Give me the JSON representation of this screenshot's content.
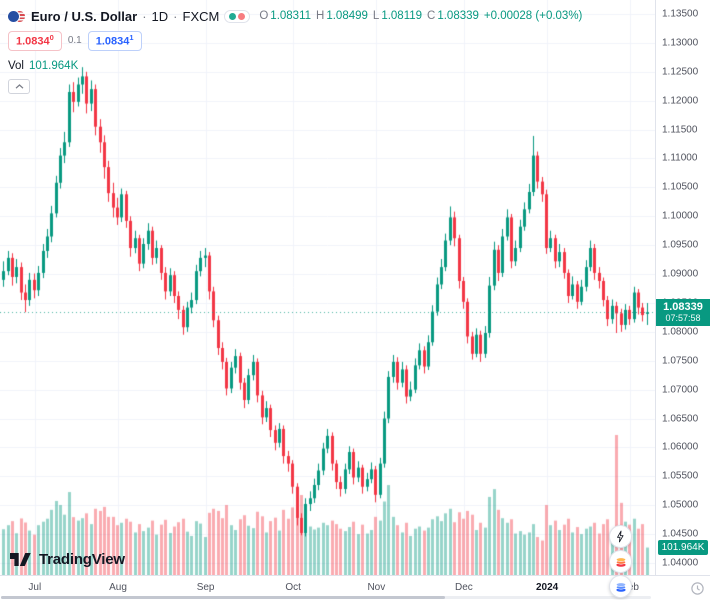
{
  "header": {
    "symbol": "Euro / U.S. Dollar",
    "separator": "·",
    "interval": "1D",
    "exchange": "FXCM",
    "ohlc": {
      "o_label": "O",
      "o_value": "1.08311",
      "h_label": "H",
      "h_value": "1.08499",
      "l_label": "L",
      "l_value": "1.08119",
      "c_label": "C",
      "c_value": "1.08339",
      "change": "+0.00028 (+0.03%)"
    },
    "sell_price": "1.0834",
    "sell_sup": "0",
    "spread": "0.1",
    "buy_price": "1.0834",
    "buy_sup": "1",
    "vol_label": "Vol",
    "vol_value": "101.964K"
  },
  "price_scale": {
    "current_price": "1.08339",
    "countdown": "07:57:58",
    "volume_badge": "101.964K"
  },
  "footer": {
    "brand": "TradingView"
  },
  "colors": {
    "up": "#089981",
    "down": "#f23645",
    "up_volume": "rgba(8,153,129,0.42)",
    "down_volume": "rgba(242,54,69,0.42)",
    "price_line": "rgba(8,153,129,0.75)",
    "price_tag_bg": "#089981",
    "volume_badge_bg": "#089981",
    "buy": "#2962ff",
    "sell": "#f23645",
    "grid": "#f0f3fa",
    "axis_text": "#50535e"
  },
  "chart_data": {
    "type": "candlestick",
    "title": "Euro / U.S. Dollar · 1D · FXCM",
    "symbol": "EURUSD",
    "interval": "1D",
    "exchange": "FXCM",
    "grid": true,
    "y_axis": {
      "min": 1.04,
      "max": 1.135,
      "tick_step": 0.005,
      "ticks": [
        "1.13500",
        "1.13000",
        "1.12500",
        "1.12000",
        "1.11500",
        "1.11000",
        "1.10500",
        "1.10000",
        "1.09500",
        "1.09000",
        "1.08500",
        "1.08000",
        "1.07500",
        "1.07000",
        "1.06500",
        "1.06000",
        "1.05500",
        "1.05000",
        "1.04500",
        "1.04000"
      ]
    },
    "x_axis": {
      "ticks": [
        {
          "label": "Jul",
          "index": 7
        },
        {
          "label": "Aug",
          "index": 26
        },
        {
          "label": "Sep",
          "index": 46
        },
        {
          "label": "Oct",
          "index": 66
        },
        {
          "label": "Nov",
          "index": 85
        },
        {
          "label": "Dec",
          "index": 105
        },
        {
          "label": "2024",
          "index": 124,
          "year": true
        },
        {
          "label": "Feb",
          "index": 143
        }
      ]
    },
    "last_bar": {
      "open": 1.08311,
      "high": 1.08499,
      "low": 1.08119,
      "close": 1.08339,
      "change_abs": "+0.00028",
      "change_pct": "+0.03%",
      "volume": "101.964K"
    },
    "columns": [
      "open",
      "high",
      "low",
      "close",
      "volume_k"
    ],
    "candles": [
      [
        1.089,
        1.0922,
        1.0878,
        1.0905,
        170
      ],
      [
        1.0905,
        1.094,
        1.0898,
        1.0928,
        185
      ],
      [
        1.0928,
        1.0936,
        1.088,
        1.0895,
        200
      ],
      [
        1.0895,
        1.0926,
        1.0884,
        1.0912,
        155
      ],
      [
        1.0912,
        1.092,
        1.0855,
        1.0868,
        210
      ],
      [
        1.0868,
        1.0882,
        1.0834,
        1.0855,
        195
      ],
      [
        1.0855,
        1.0902,
        1.0845,
        1.089,
        165
      ],
      [
        1.089,
        1.0901,
        1.0858,
        1.0872,
        150
      ],
      [
        1.0872,
        1.0914,
        1.0862,
        1.0902,
        185
      ],
      [
        1.0902,
        1.0952,
        1.0893,
        1.094,
        198
      ],
      [
        1.094,
        1.0978,
        1.0928,
        1.0965,
        209
      ],
      [
        1.0965,
        1.1018,
        1.0955,
        1.1005,
        242
      ],
      [
        1.1005,
        1.107,
        1.0998,
        1.1058,
        275
      ],
      [
        1.1058,
        1.1118,
        1.1048,
        1.1105,
        260
      ],
      [
        1.1105,
        1.1146,
        1.1092,
        1.1128,
        224
      ],
      [
        1.1128,
        1.1228,
        1.112,
        1.1215,
        308
      ],
      [
        1.1215,
        1.1232,
        1.118,
        1.1198,
        215
      ],
      [
        1.1198,
        1.124,
        1.119,
        1.1228,
        202
      ],
      [
        1.1228,
        1.1258,
        1.1212,
        1.1242,
        211
      ],
      [
        1.1242,
        1.125,
        1.1178,
        1.1195,
        229
      ],
      [
        1.1195,
        1.1235,
        1.1182,
        1.122,
        189
      ],
      [
        1.122,
        1.1228,
        1.114,
        1.1155,
        246
      ],
      [
        1.1155,
        1.1168,
        1.111,
        1.1128,
        238
      ],
      [
        1.1128,
        1.114,
        1.1065,
        1.1085,
        253
      ],
      [
        1.1085,
        1.1096,
        1.1025,
        1.104,
        216
      ],
      [
        1.104,
        1.1058,
        1.0998,
        1.1015,
        216
      ],
      [
        1.1015,
        1.1032,
        1.0985,
        1.0998,
        185
      ],
      [
        1.0998,
        1.1048,
        1.099,
        1.1038,
        194
      ],
      [
        1.1038,
        1.1044,
        1.098,
        1.0992,
        209
      ],
      [
        1.0992,
        1.1,
        1.093,
        1.0945,
        198
      ],
      [
        1.0945,
        1.0975,
        1.0936,
        1.0962,
        158
      ],
      [
        1.0962,
        1.0968,
        1.0905,
        1.0918,
        189
      ],
      [
        1.0918,
        1.0962,
        1.091,
        1.0952,
        163
      ],
      [
        1.0952,
        1.0988,
        1.0942,
        1.0975,
        176
      ],
      [
        1.0975,
        1.0982,
        1.0916,
        1.0928,
        202
      ],
      [
        1.0928,
        1.0958,
        1.0918,
        1.0945,
        150
      ],
      [
        1.0945,
        1.095,
        1.089,
        1.0902,
        187
      ],
      [
        1.0902,
        1.0912,
        1.0856,
        1.087,
        205
      ],
      [
        1.087,
        1.091,
        1.0862,
        1.0898,
        156
      ],
      [
        1.0898,
        1.0905,
        1.085,
        1.0862,
        180
      ],
      [
        1.0862,
        1.087,
        1.0822,
        1.0838,
        196
      ],
      [
        1.0838,
        1.0845,
        1.0795,
        1.0808,
        209
      ],
      [
        1.0808,
        1.0852,
        1.08,
        1.0842,
        161
      ],
      [
        1.0842,
        1.0868,
        1.0832,
        1.0855,
        145
      ],
      [
        1.0855,
        1.0916,
        1.0848,
        1.0905,
        200
      ],
      [
        1.0905,
        1.094,
        1.0896,
        1.0928,
        191
      ],
      [
        1.0928,
        1.0945,
        1.0912,
        1.0932,
        141
      ],
      [
        1.0932,
        1.0938,
        1.0856,
        1.087,
        231
      ],
      [
        1.087,
        1.0878,
        1.0808,
        1.082,
        246
      ],
      [
        1.082,
        1.0828,
        1.076,
        1.0772,
        238
      ],
      [
        1.0772,
        1.0782,
        1.0735,
        1.0748,
        211
      ],
      [
        1.0748,
        1.0755,
        1.069,
        1.0702,
        260
      ],
      [
        1.0702,
        1.0748,
        1.0694,
        1.0738,
        185
      ],
      [
        1.0738,
        1.077,
        1.0728,
        1.0758,
        167
      ],
      [
        1.0758,
        1.0764,
        1.07,
        1.0712,
        207
      ],
      [
        1.0712,
        1.072,
        1.0668,
        1.0682,
        222
      ],
      [
        1.0682,
        1.0736,
        1.0675,
        1.0725,
        183
      ],
      [
        1.0725,
        1.076,
        1.0716,
        1.0748,
        174
      ],
      [
        1.0748,
        1.0754,
        1.0678,
        1.069,
        235
      ],
      [
        1.069,
        1.0698,
        1.064,
        1.0652,
        218
      ],
      [
        1.0652,
        1.068,
        1.0644,
        1.0668,
        158
      ],
      [
        1.0668,
        1.0674,
        1.0618,
        1.063,
        200
      ],
      [
        1.063,
        1.0638,
        1.0595,
        1.0608,
        213
      ],
      [
        1.0608,
        1.0642,
        1.06,
        1.0632,
        165
      ],
      [
        1.0632,
        1.0638,
        1.0572,
        1.0585,
        242
      ],
      [
        1.0585,
        1.0594,
        1.0558,
        1.0572,
        209
      ],
      [
        1.0572,
        1.0578,
        1.052,
        1.0532,
        251
      ],
      [
        1.0532,
        1.0538,
        1.0465,
        1.0478,
        282
      ],
      [
        1.0478,
        1.0486,
        1.0448,
        1.0452,
        297
      ],
      [
        1.0452,
        1.0512,
        1.0446,
        1.0502,
        264
      ],
      [
        1.0502,
        1.0524,
        1.049,
        1.0512,
        180
      ],
      [
        1.0512,
        1.0546,
        1.0504,
        1.0535,
        169
      ],
      [
        1.0535,
        1.0572,
        1.0526,
        1.056,
        176
      ],
      [
        1.056,
        1.0608,
        1.0552,
        1.0598,
        194
      ],
      [
        1.0598,
        1.0632,
        1.059,
        1.062,
        185
      ],
      [
        1.062,
        1.0626,
        1.056,
        1.0572,
        202
      ],
      [
        1.0572,
        1.0578,
        1.0528,
        1.054,
        189
      ],
      [
        1.054,
        1.055,
        1.0515,
        1.0528,
        172
      ],
      [
        1.0528,
        1.0572,
        1.052,
        1.0562,
        163
      ],
      [
        1.0562,
        1.0602,
        1.0554,
        1.0592,
        178
      ],
      [
        1.0592,
        1.0598,
        1.0536,
        1.0548,
        198
      ],
      [
        1.0548,
        1.0576,
        1.054,
        1.0565,
        152
      ],
      [
        1.0565,
        1.057,
        1.052,
        1.0532,
        187
      ],
      [
        1.0532,
        1.0556,
        1.0524,
        1.0545,
        154
      ],
      [
        1.0545,
        1.0574,
        1.0538,
        1.0562,
        167
      ],
      [
        1.0562,
        1.0568,
        1.0505,
        1.0518,
        216
      ],
      [
        1.0518,
        1.0582,
        1.0512,
        1.0572,
        202
      ],
      [
        1.0572,
        1.0662,
        1.0565,
        1.065,
        273
      ],
      [
        1.065,
        1.0732,
        1.0642,
        1.0722,
        334
      ],
      [
        1.0722,
        1.076,
        1.0712,
        1.0748,
        216
      ],
      [
        1.0748,
        1.0756,
        1.07,
        1.0712,
        185
      ],
      [
        1.0712,
        1.0748,
        1.0704,
        1.0735,
        158
      ],
      [
        1.0735,
        1.0742,
        1.0676,
        1.0688,
        194
      ],
      [
        1.0688,
        1.0714,
        1.068,
        1.07,
        145
      ],
      [
        1.07,
        1.0754,
        1.0694,
        1.0742,
        172
      ],
      [
        1.0742,
        1.078,
        1.0735,
        1.0768,
        180
      ],
      [
        1.0768,
        1.0775,
        1.0728,
        1.074,
        165
      ],
      [
        1.074,
        1.0794,
        1.0734,
        1.0782,
        176
      ],
      [
        1.0782,
        1.0846,
        1.0776,
        1.0835,
        207
      ],
      [
        1.0835,
        1.0894,
        1.0828,
        1.0882,
        218
      ],
      [
        1.0882,
        1.0926,
        1.0874,
        1.0912,
        200
      ],
      [
        1.0912,
        1.097,
        1.0905,
        1.0958,
        229
      ],
      [
        1.0958,
        1.1017,
        1.095,
        1.0998,
        246
      ],
      [
        1.0998,
        1.1008,
        1.0948,
        1.0962,
        196
      ],
      [
        1.0962,
        1.0968,
        1.0875,
        1.0888,
        233
      ],
      [
        1.0888,
        1.0895,
        1.084,
        1.0852,
        209
      ],
      [
        1.0852,
        1.0858,
        1.078,
        1.0792,
        238
      ],
      [
        1.0792,
        1.08,
        1.0752,
        1.0762,
        224
      ],
      [
        1.0762,
        1.0806,
        1.0756,
        1.0795,
        167
      ],
      [
        1.0795,
        1.0802,
        1.0748,
        1.0762,
        194
      ],
      [
        1.0762,
        1.081,
        1.0755,
        1.0798,
        176
      ],
      [
        1.0798,
        1.0895,
        1.079,
        1.088,
        290
      ],
      [
        1.088,
        1.0956,
        1.0872,
        1.0942,
        319
      ],
      [
        1.0942,
        1.095,
        1.0888,
        1.0902,
        242
      ],
      [
        1.0902,
        1.0978,
        1.0895,
        1.0965,
        211
      ],
      [
        1.0965,
        1.1012,
        1.0958,
        1.0998,
        194
      ],
      [
        1.0998,
        1.1004,
        1.091,
        1.0922,
        207
      ],
      [
        1.0922,
        1.0958,
        1.0914,
        1.0945,
        154
      ],
      [
        1.0945,
        1.0994,
        1.0938,
        1.0982,
        163
      ],
      [
        1.0982,
        1.1024,
        1.0975,
        1.1012,
        150
      ],
      [
        1.1012,
        1.1056,
        1.1005,
        1.1042,
        158
      ],
      [
        1.1042,
        1.1139,
        1.1035,
        1.1105,
        189
      ],
      [
        1.1105,
        1.1112,
        1.1048,
        1.106,
        141
      ],
      [
        1.106,
        1.1068,
        1.1025,
        1.1038,
        128
      ],
      [
        1.1038,
        1.1046,
        1.0935,
        1.0945,
        260
      ],
      [
        1.0945,
        1.0975,
        1.0938,
        1.0962,
        185
      ],
      [
        1.0962,
        1.0968,
        1.091,
        1.0922,
        202
      ],
      [
        1.0922,
        1.0952,
        1.0912,
        1.0938,
        167
      ],
      [
        1.0938,
        1.0945,
        1.0892,
        1.0902,
        187
      ],
      [
        1.0902,
        1.0908,
        1.085,
        1.0862,
        209
      ],
      [
        1.0862,
        1.0896,
        1.0856,
        1.0882,
        158
      ],
      [
        1.0882,
        1.0888,
        1.084,
        1.0852,
        178
      ],
      [
        1.0852,
        1.089,
        1.0846,
        1.0878,
        152
      ],
      [
        1.0878,
        1.0924,
        1.087,
        1.0912,
        172
      ],
      [
        1.0912,
        1.0958,
        1.0905,
        1.0945,
        180
      ],
      [
        1.0945,
        1.0952,
        1.089,
        1.0902,
        194
      ],
      [
        1.0902,
        1.0912,
        1.0875,
        1.0888,
        154
      ],
      [
        1.0888,
        1.0894,
        1.0844,
        1.0855,
        189
      ],
      [
        1.0855,
        1.0862,
        1.081,
        1.0822,
        207
      ],
      [
        1.0822,
        1.0856,
        1.0814,
        1.0845,
        165
      ],
      [
        1.0845,
        1.0852,
        1.0798,
        1.0832,
        520
      ],
      [
        1.0832,
        1.084,
        1.08,
        1.0812,
        268
      ],
      [
        1.0812,
        1.0848,
        1.0804,
        1.0838,
        198
      ],
      [
        1.0838,
        1.0845,
        1.0812,
        1.0822,
        187
      ],
      [
        1.0822,
        1.0878,
        1.0816,
        1.0868,
        209
      ],
      [
        1.0868,
        1.0874,
        1.083,
        1.0842,
        172
      ],
      [
        1.0842,
        1.085,
        1.0818,
        1.0829,
        189
      ],
      [
        1.08311,
        1.08499,
        1.08119,
        1.08339,
        101.964
      ]
    ]
  }
}
